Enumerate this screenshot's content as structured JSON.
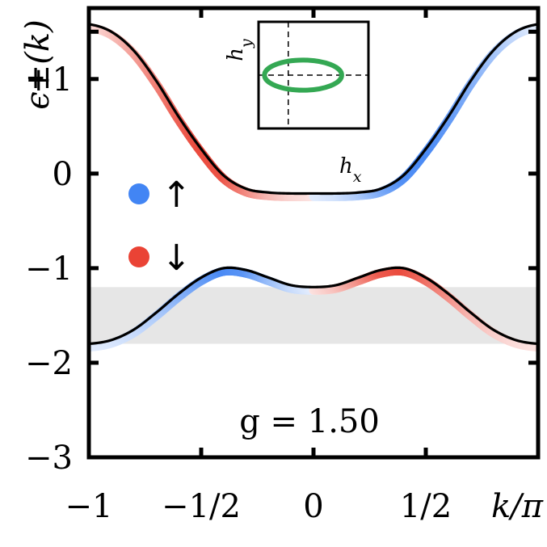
{
  "chart_data": {
    "type": "line",
    "title": "",
    "xlabel": "k/π",
    "ylabel": "ϵ±(k)",
    "xlim": [
      -1,
      1
    ],
    "ylim": [
      -3,
      1.75
    ],
    "x_ticks": [
      -1,
      -0.5,
      0,
      0.5,
      1
    ],
    "x_tick_labels": [
      "−1",
      "−1/2",
      "0",
      "1/2",
      ""
    ],
    "y_ticks": [
      -3,
      -2,
      -1,
      0,
      1
    ],
    "y_tick_labels": [
      "−3",
      "−2",
      "−1",
      "0",
      "+1"
    ],
    "grid": false,
    "legend": {
      "placement": "left-middle",
      "entries": [
        {
          "label": "↑",
          "color": "#4285f4"
        },
        {
          "label": "↓",
          "color": "#ea4335"
        }
      ]
    },
    "annotation": "g = 1.50",
    "shaded_band": {
      "ymin": -1.8,
      "ymax": -1.2,
      "color": "#e6e6e6"
    },
    "series": [
      {
        "band": "upper",
        "x": [
          -1,
          -0.9,
          -0.8,
          -0.7,
          -0.6,
          -0.5,
          -0.4,
          -0.3,
          -0.2,
          -0.1,
          0,
          0.1,
          0.2,
          0.3,
          0.4,
          0.5,
          0.6,
          0.7,
          0.8,
          0.9,
          1
        ],
        "y": [
          1.58,
          1.5,
          1.3,
          0.98,
          0.6,
          0.26,
          -0.02,
          -0.16,
          -0.2,
          -0.21,
          -0.21,
          -0.21,
          -0.2,
          -0.16,
          -0.02,
          0.26,
          0.6,
          0.98,
          1.3,
          1.5,
          1.58
        ],
        "spin_polarization": [
          0,
          -0.2,
          -0.4,
          -0.6,
          -0.8,
          -0.95,
          -0.9,
          -0.6,
          -0.3,
          -0.1,
          0,
          0.1,
          0.3,
          0.6,
          0.9,
          0.95,
          0.8,
          0.6,
          0.4,
          0.2,
          0
        ]
      },
      {
        "band": "lower",
        "x": [
          -1,
          -0.9,
          -0.8,
          -0.7,
          -0.6,
          -0.5,
          -0.4,
          -0.3,
          -0.2,
          -0.1,
          0,
          0.1,
          0.2,
          0.3,
          0.4,
          0.5,
          0.6,
          0.7,
          0.8,
          0.9,
          1
        ],
        "y": [
          -1.8,
          -1.76,
          -1.65,
          -1.47,
          -1.27,
          -1.1,
          -1.0,
          -1.02,
          -1.1,
          -1.18,
          -1.2,
          -1.18,
          -1.1,
          -1.02,
          -1.0,
          -1.1,
          -1.27,
          -1.47,
          -1.65,
          -1.76,
          -1.8
        ],
        "spin_polarization": [
          0,
          0.05,
          0.15,
          0.3,
          0.55,
          0.75,
          0.95,
          0.85,
          0.5,
          0.2,
          0,
          -0.2,
          -0.5,
          -0.85,
          -0.95,
          -0.75,
          -0.55,
          -0.3,
          -0.15,
          -0.05,
          0
        ]
      }
    ],
    "inset": {
      "xlabel": "h_x",
      "ylabel": "h_y",
      "curve": "ellipse",
      "curve_color": "#34a853",
      "center": [
        0.5,
        0.0
      ],
      "radii": [
        1.3,
        0.55
      ],
      "xlim": [
        -1.0,
        2.7
      ],
      "ylim": [
        -1.95,
        1.95
      ]
    }
  }
}
